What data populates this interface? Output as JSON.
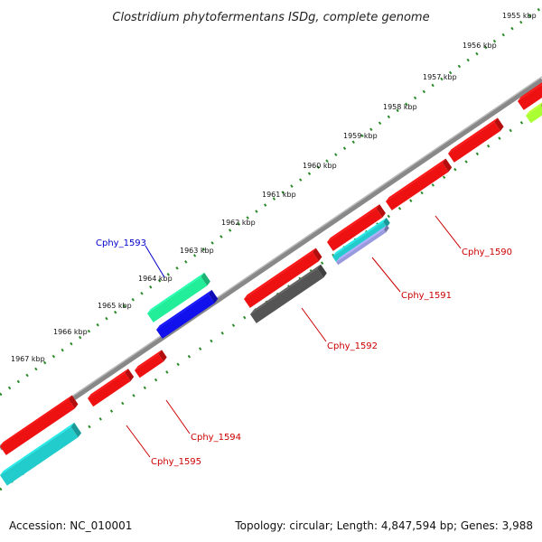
{
  "title": "Clostridium phytofermentans ISDg, complete genome",
  "footer": {
    "accession": "Accession: NC_010001",
    "summary": "Topology: circular; Length: 4,847,594 bp; Genes: 3,988"
  },
  "colors": {
    "backbone": "#888888",
    "dots": "#2a8a2a",
    "gene_label": "#cc0000",
    "selected_label": "#0000cc"
  },
  "kbp_labels": [
    "1955 kbp",
    "1956 kbp",
    "1957 kbp",
    "1958 kbp",
    "1959 kbp",
    "1960 kbp",
    "1961 kbp",
    "1962 kbp",
    "1963 kbp",
    "1964 kbp",
    "1965 kbp",
    "1966 kbp",
    "1967 kbp"
  ],
  "gene_labels": [
    {
      "text": "Cphy_1590",
      "color": "#cc0000"
    },
    {
      "text": "Cphy_1591",
      "color": "#cc0000"
    },
    {
      "text": "Cphy_1592",
      "color": "#cc0000"
    },
    {
      "text": "Cphy_1593",
      "color": "#0000cc"
    },
    {
      "text": "Cphy_1594",
      "color": "#cc0000"
    },
    {
      "text": "Cphy_1595",
      "color": "#cc0000"
    }
  ],
  "gene_colors": {
    "red": "#ee1111",
    "green": "#22ee99",
    "blue": "#1111ee",
    "gray": "#555555",
    "cyan": "#22cccc",
    "lightblue": "#9999dd",
    "lime": "#aaff33"
  }
}
